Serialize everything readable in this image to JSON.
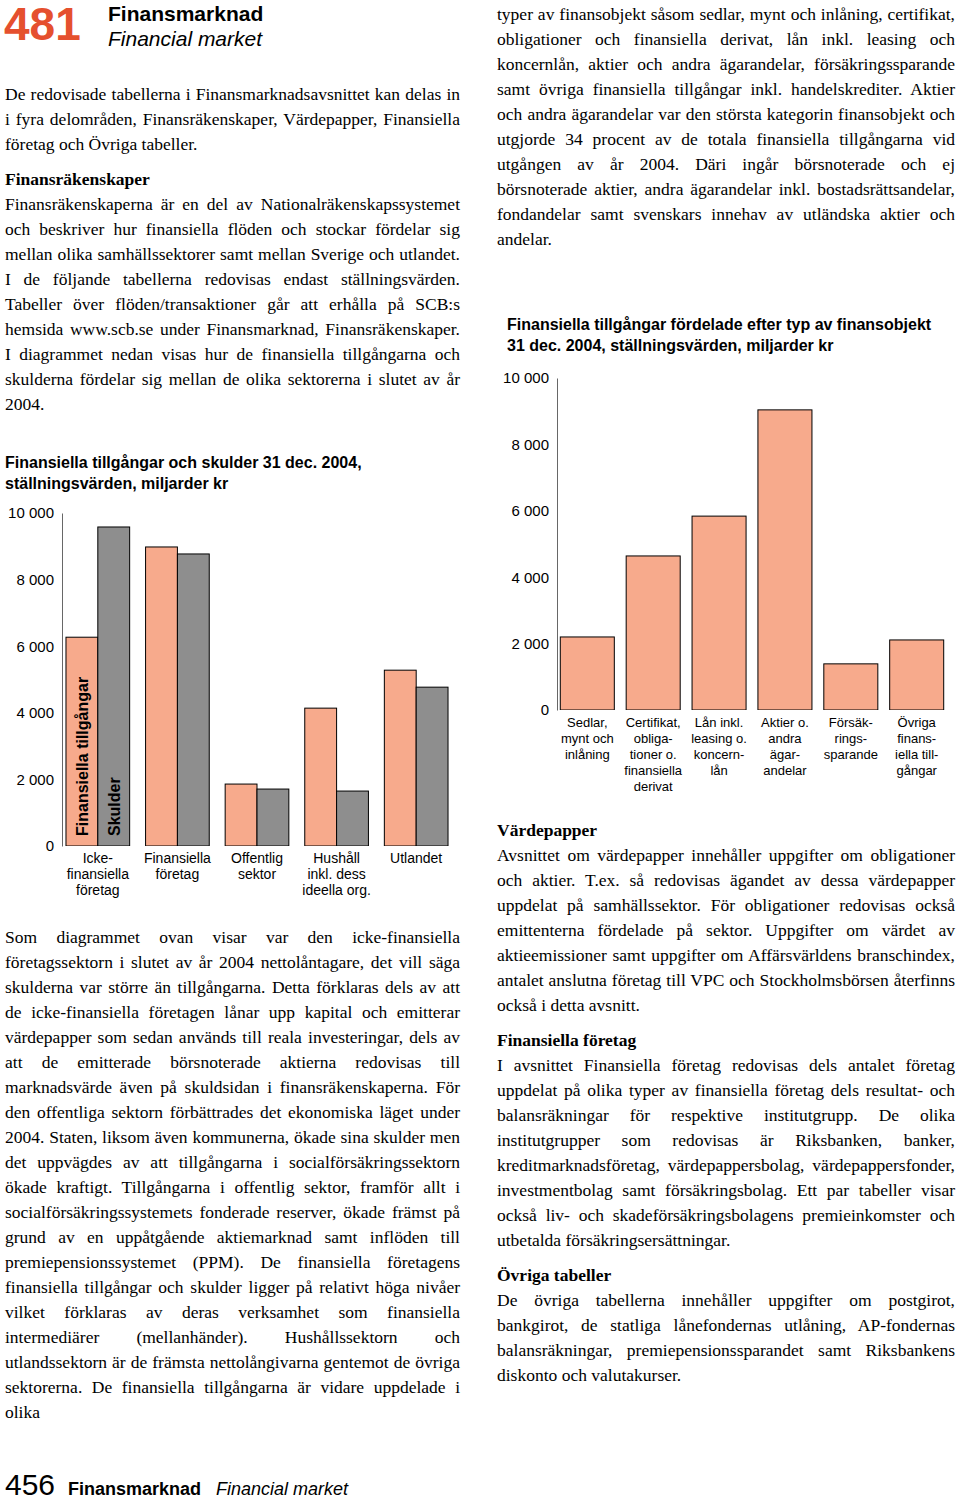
{
  "header": {
    "page_number": "481",
    "title": "Finansmarknad",
    "subtitle": "Financial market"
  },
  "intro": "De redovisade tabellerna i Finansmarknadsavsnittet kan delas in i fyra delområden, Finansräkenskaper, Värdepapper, Finansiella företag och Övriga tabeller.",
  "finansrakenskaper": {
    "heading": "Finansräkenskaper",
    "text": "Finansräkenskaperna är en del av Nationalräkenskapssystemet och beskriver hur finansiella flöden och stockar fördelar sig mellan olika samhällssektorer samt mellan Sverige och utlandet. I de följande tabellerna redovisas endast ställningsvärden. Tabeller över flöden/transaktioner går att erhålla på SCB:s hemsida www.scb.se under Finansmarknad, Finansräkenskaper. I diagrammet nedan visas hur de finansiella tillgångarna och skulderna fördelar sig mellan de olika sektorerna i slutet av år 2004.",
    "comment": "Som diagrammet ovan visar var den icke-finansiella företagssektorn i slutet av år 2004 nettolåntagare, det vill säga skulderna var större än tillgångarna. Detta förklaras dels av att de icke-finansiella företagen lånar upp kapital och emitterar värdepapper som sedan används till reala investeringar, dels av att de emitterade börsnoterade aktierna redovisas till marknadsvärde även på skuldsidan i finansräkenskaperna. För den offentliga sektorn förbättrades det ekonomiska läget under 2004. Staten, liksom även kommunerna, ökade sina skulder men det uppvägdes av att tillgångarna i socialförsäkringssektorn ökade kraftigt. Tillgångarna i offentlig sektor, framför allt i socialförsäkringssystemets fonderade reserver, ökade främst på grund av en uppåtgående aktiemarknad samt inflöden till premiepensionssystemet (PPM). De finansiella företagens finansiella tillgångar och skulder ligger på relativt höga nivåer vilket förklaras av deras verksamhet som finansiella intermediärer (mellanhänder). Hushållssektorn och utlandssektorn är de främsta nettolångivarna gentemot de övriga sektorerna. De finansiella tillgångarna är vidare uppdelade i olika",
    "continued": "typer av finansobjekt såsom sedlar, mynt och inlåning, certifikat, obligationer och finansiella derivat, lån inkl. leasing och koncernlån, aktier och andra ägarandelar, försäkringssparande samt övriga finansiella tillgångar inkl. handelskrediter. Aktier och andra ägarandelar var den största kategorin finansobjekt och utgjorde 34 procent av de totala finansiella tillgångarna vid utgången av år 2004. Däri ingår börsnoterade och ej börsnoterade aktier, andra ägarandelar inkl. bostadsrättsandelar, fondandelar samt svenskars innehav av utländska aktier och andelar."
  },
  "sections": [
    {
      "heading": "Värdepapper",
      "text": "Avsnittet om värdepapper innehåller uppgifter om obligationer och aktier. T.ex. så redovisas ägandet av dessa värdepapper uppdelat på samhällssektor. För obligationer redovisas också emittenterna fördelade på sektor. Uppgifter om värdet av aktieemissioner samt uppgifter om Affärsvärldens branschindex, antalet anslutna företag till VPC och Stockholmsbörsen återfinns också i detta avsnitt."
    },
    {
      "heading": "Finansiella företag",
      "text": "I avsnittet Finansiella företag redovisas dels antalet företag uppdelat på olika typer av finansiella företag dels resultat- och balansräkningar för respektive institutgrupp. De olika institutgrupper som redovisas är Riksbanken, banker, kreditmarknadsföretag, värdepappersbolag, värdepappersfonder, investmentbolag samt försäkringsbolag. Ett par tabeller visar också liv- och skadeförsäkringsbolagens premieinkomster och utbetalda försäkringsersättningar."
    },
    {
      "heading": "Övriga tabeller",
      "text": "De övriga tabellerna innehåller uppgifter om postgirot, bankgirot, de statliga lånefondernas utlåning, AP-fondernas balansräkningar, premiepensionssparandet samt Riksbankens diskonto och valutakurser."
    }
  ],
  "chart_data": [
    {
      "type": "bar",
      "title": "Finansiella tillgångar och skulder 31 dec. 2004, ställningsvärden, miljarder kr",
      "categories": [
        "Icke-\nfinansiella\nföretag",
        "Finansiella\nföretag",
        "Offentlig\nsektor",
        "Hushåll\ninkl. dess\nideella org.",
        "Utlandet"
      ],
      "series": [
        {
          "name": "Finansiella tillgångar",
          "color": "#f7aa8c",
          "values": [
            6270,
            8980,
            1860,
            4140,
            5280
          ]
        },
        {
          "name": "Skulder",
          "color": "#8e8e8e",
          "values": [
            9580,
            8770,
            1710,
            1650,
            4770
          ]
        }
      ],
      "ylim": [
        0,
        10000
      ],
      "yticks": [
        0,
        {
          "value": 2000,
          "label": "2 000"
        },
        {
          "value": 4000,
          "label": "4 000"
        },
        {
          "value": 6000,
          "label": "6 000"
        },
        {
          "value": 8000,
          "label": "8 000"
        },
        {
          "value": 10000,
          "label": "10 000"
        }
      ],
      "grid": false
    },
    {
      "type": "bar",
      "title": "Finansiella tillgångar fördelade efter typ av finansobjekt 31 dec. 2004, ställningsvärden, miljarder kr",
      "categories": [
        "Sedlar,\nmynt och\ninlåning",
        "Certifikat,\nobliga-\ntioner o.\nfinansiella\nderivat",
        "Lån inkl.\nleasing o.\nkoncern-\nlån",
        "Aktier o.\nandra\nägar-\nandelar",
        "Försäk-\nrings-\nsparande",
        "Övriga\nfinans-\niella till-\ngångar"
      ],
      "values": [
        2200,
        4640,
        5840,
        9040,
        1390,
        2110
      ],
      "color": "#f7aa8c",
      "ylim": [
        0,
        10000
      ],
      "yticks": [
        0,
        {
          "value": 2000,
          "label": "2 000"
        },
        {
          "value": 4000,
          "label": "4 000"
        },
        {
          "value": 6000,
          "label": "6 000"
        },
        {
          "value": 8000,
          "label": "8 000"
        },
        {
          "value": 10000,
          "label": "10 000"
        }
      ],
      "grid": false
    }
  ],
  "footer": {
    "page_number": "456",
    "title": "Finansmarknad",
    "subtitle": "Financial market"
  }
}
